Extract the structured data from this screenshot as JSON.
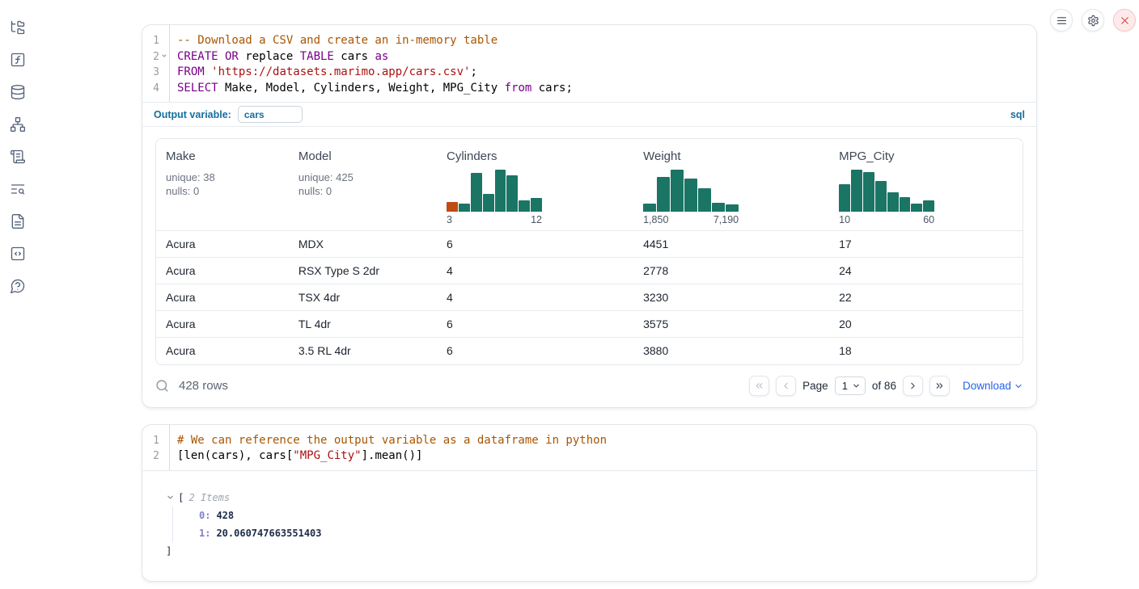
{
  "colors": {
    "hist_green": "#1A7565",
    "hist_orange": "#C14B10",
    "keyword": "#770088",
    "string": "#AA1111",
    "comment": "#AA5500",
    "label_blue": "#156E9E",
    "link_blue": "#2563EB"
  },
  "sidebar": {
    "items": [
      {
        "label": "file-explorer",
        "icon": "folder-tree"
      },
      {
        "label": "scratchpad",
        "icon": "function-square"
      },
      {
        "label": "datasources",
        "icon": "database"
      },
      {
        "label": "dependencies",
        "icon": "network"
      },
      {
        "label": "script",
        "icon": "scroll-text"
      },
      {
        "label": "logs",
        "icon": "text-search"
      },
      {
        "label": "documentation",
        "icon": "file-text"
      },
      {
        "label": "snippets",
        "icon": "code-square"
      },
      {
        "label": "help",
        "icon": "help-circle"
      }
    ]
  },
  "window_controls": [
    {
      "name": "menu",
      "icon": "menu"
    },
    {
      "name": "settings",
      "icon": "settings"
    },
    {
      "name": "shutdown",
      "icon": "x"
    }
  ],
  "cells": [
    {
      "language": "sql",
      "code_lines": [
        {
          "num": "1",
          "fold": "",
          "tokens": [
            {
              "t": "-- Download a CSV and create an in-memory table",
              "c": "com"
            }
          ]
        },
        {
          "num": "2",
          "fold": "v",
          "tokens": [
            {
              "t": "CREATE OR",
              "c": "kw"
            },
            {
              "t": " replace ",
              "c": ""
            },
            {
              "t": "TABLE",
              "c": "kw"
            },
            {
              "t": " cars ",
              "c": ""
            },
            {
              "t": "as",
              "c": "kw"
            }
          ]
        },
        {
          "num": "3",
          "fold": "",
          "tokens": [
            {
              "t": "FROM",
              "c": "kw"
            },
            {
              "t": " ",
              "c": ""
            },
            {
              "t": "'https://datasets.marimo.app/cars.csv'",
              "c": "str"
            },
            {
              "t": ";",
              "c": ""
            }
          ]
        },
        {
          "num": "4",
          "fold": "",
          "tokens": [
            {
              "t": "SELECT",
              "c": "kw"
            },
            {
              "t": " Make, Model, Cylinders, Weight, MPG_City ",
              "c": ""
            },
            {
              "t": "from",
              "c": "kw"
            },
            {
              "t": " cars;",
              "c": ""
            }
          ]
        }
      ],
      "output_variable": {
        "label": "Output variable:",
        "value": "cars"
      },
      "language_label": "sql"
    },
    {
      "language": "python",
      "code_lines": [
        {
          "num": "1",
          "fold": "",
          "tokens": [
            {
              "t": "# We can reference the output variable as a dataframe in python",
              "c": "com"
            }
          ]
        },
        {
          "num": "2",
          "fold": "",
          "tokens": [
            {
              "t": "[len(cars), cars[",
              "c": ""
            },
            {
              "t": "\"MPG_City\"",
              "c": "str"
            },
            {
              "t": "].mean()]",
              "c": ""
            }
          ]
        }
      ],
      "output_tree": {
        "open_bracket": "[",
        "items_label": "2 Items",
        "entries": [
          {
            "key": "0:",
            "value": "428"
          },
          {
            "key": "1:",
            "value": "20.060747663551403"
          }
        ],
        "close_bracket": "]"
      }
    }
  ],
  "table": {
    "columns": [
      {
        "name": "Make",
        "type": "stats",
        "unique": "unique: 38",
        "nulls": "nulls: 0"
      },
      {
        "name": "Model",
        "type": "stats",
        "unique": "unique: 425",
        "nulls": "nulls: 0"
      },
      {
        "name": "Cylinders",
        "type": "histogram",
        "labels": [
          "3",
          "12"
        ],
        "bars": [
          {
            "h": 0.24,
            "highlight": true
          },
          {
            "h": 0.19
          },
          {
            "h": 0.93
          },
          {
            "h": 0.42
          },
          {
            "h": 1.0
          },
          {
            "h": 0.87
          },
          {
            "h": 0.27
          },
          {
            "h": 0.32
          }
        ]
      },
      {
        "name": "Weight",
        "type": "histogram",
        "labels": [
          "1,850",
          "7,190"
        ],
        "bars": [
          {
            "h": 0.19
          },
          {
            "h": 0.82
          },
          {
            "h": 1.0
          },
          {
            "h": 0.79
          },
          {
            "h": 0.56
          },
          {
            "h": 0.22
          },
          {
            "h": 0.18
          }
        ]
      },
      {
        "name": "MPG_City",
        "type": "histogram",
        "labels": [
          "10",
          "60"
        ],
        "bars": [
          {
            "h": 0.66
          },
          {
            "h": 1.0
          },
          {
            "h": 0.94
          },
          {
            "h": 0.73
          },
          {
            "h": 0.47
          },
          {
            "h": 0.35
          },
          {
            "h": 0.19
          },
          {
            "h": 0.27
          }
        ]
      }
    ],
    "rows": [
      [
        "Acura",
        "MDX",
        "6",
        "4451",
        "17"
      ],
      [
        "Acura",
        "RSX Type S 2dr",
        "4",
        "2778",
        "24"
      ],
      [
        "Acura",
        "TSX 4dr",
        "4",
        "3230",
        "22"
      ],
      [
        "Acura",
        "TL 4dr",
        "6",
        "3575",
        "20"
      ],
      [
        "Acura",
        "3.5 RL 4dr",
        "6",
        "3880",
        "18"
      ]
    ],
    "footer": {
      "row_count": "428 rows",
      "page_label": "Page",
      "page_value": "1",
      "total_label": "of 86",
      "download_label": "Download",
      "first_icon": "chevrons-left",
      "prev_icon": "chevron-left",
      "next_icon": "chevron-right",
      "last_icon": "chevrons-right"
    }
  },
  "chart_data": [
    {
      "type": "bar",
      "title": "Cylinders column histogram",
      "xlabel": "Cylinders",
      "x_range": [
        3,
        12
      ],
      "tick_labels": [
        "3",
        "12"
      ],
      "values_normalized": [
        0.24,
        0.19,
        0.93,
        0.42,
        1.0,
        0.87,
        0.27,
        0.32
      ],
      "highlight_first_bar": true,
      "grid": false,
      "legend": "none"
    },
    {
      "type": "bar",
      "title": "Weight column histogram",
      "xlabel": "Weight",
      "x_range": [
        1850,
        7190
      ],
      "tick_labels": [
        "1,850",
        "7,190"
      ],
      "values_normalized": [
        0.19,
        0.82,
        1.0,
        0.79,
        0.56,
        0.22,
        0.18
      ],
      "grid": false,
      "legend": "none"
    },
    {
      "type": "bar",
      "title": "MPG_City column histogram",
      "xlabel": "MPG_City",
      "x_range": [
        10,
        60
      ],
      "tick_labels": [
        "10",
        "60"
      ],
      "values_normalized": [
        0.66,
        1.0,
        0.94,
        0.73,
        0.47,
        0.35,
        0.19,
        0.27
      ],
      "grid": false,
      "legend": "none"
    }
  ]
}
